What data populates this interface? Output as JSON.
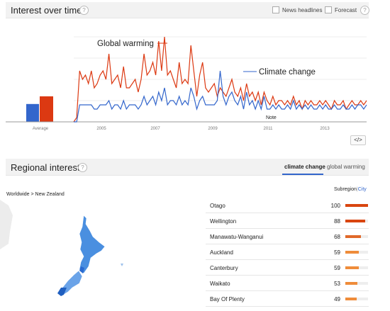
{
  "interest": {
    "title": "Interest over time",
    "news_headlines_label": "News headlines",
    "forecast_label": "Forecast",
    "average_label": "Average",
    "note_label": "Note",
    "annotation_global": "Global warming",
    "annotation_climate": "Climate change",
    "embed_label": "</>"
  },
  "colors": {
    "global_warming": "#dc3912",
    "climate_change": "#3366cc",
    "bar_dark": "#d9450f",
    "bar_light": "#ef8c3a"
  },
  "chart_data": {
    "type": "line",
    "x_ticks": [
      "2005",
      "2007",
      "2009",
      "2011",
      "2013"
    ],
    "series": [
      {
        "name": "Global warming",
        "average": 30,
        "values": [
          0,
          5,
          60,
          50,
          55,
          45,
          60,
          40,
          45,
          55,
          60,
          50,
          80,
          45,
          50,
          55,
          40,
          65,
          40,
          40,
          45,
          50,
          35,
          50,
          80,
          55,
          60,
          70,
          55,
          95,
          60,
          100,
          55,
          60,
          50,
          40,
          70,
          45,
          50,
          45,
          90,
          60,
          30,
          55,
          70,
          40,
          35,
          40,
          45,
          30,
          40,
          35,
          30,
          40,
          50,
          35,
          30,
          40,
          25,
          45,
          30,
          35,
          25,
          35,
          20,
          35,
          25,
          20,
          30,
          20,
          25,
          25,
          20,
          25,
          20,
          30,
          20,
          25,
          15,
          25,
          20,
          25,
          20,
          20,
          25,
          20,
          25,
          20,
          15,
          25,
          20,
          20,
          25,
          15,
          20,
          25,
          20,
          20,
          25,
          20,
          25
        ]
      },
      {
        "name": "Climate change",
        "average": 21,
        "values": [
          0,
          0,
          20,
          20,
          20,
          20,
          20,
          15,
          15,
          20,
          20,
          20,
          25,
          15,
          20,
          20,
          15,
          25,
          15,
          20,
          20,
          20,
          15,
          20,
          30,
          20,
          25,
          30,
          20,
          35,
          25,
          40,
          20,
          25,
          25,
          20,
          30,
          20,
          25,
          20,
          40,
          30,
          15,
          25,
          30,
          20,
          20,
          20,
          20,
          25,
          60,
          30,
          20,
          30,
          35,
          25,
          20,
          30,
          15,
          35,
          20,
          25,
          15,
          25,
          15,
          30,
          15,
          15,
          20,
          15,
          20,
          15,
          15,
          20,
          15,
          25,
          15,
          20,
          15,
          20,
          15,
          20,
          15,
          15,
          20,
          15,
          20,
          15,
          15,
          20,
          15,
          15,
          20,
          15,
          15,
          20,
          15,
          20,
          20,
          15,
          20
        ]
      }
    ],
    "ylim": [
      0,
      100
    ]
  },
  "regional": {
    "title": "Regional interest",
    "tab_climate": "climate change",
    "tab_global": "global warming",
    "subregion_label": "Subregion",
    "city_label": "City",
    "breadcrumb": "Worldwide > New Zealand",
    "rows": [
      {
        "name": "Otago",
        "value": 100,
        "color": "#d9450f"
      },
      {
        "name": "Wellington",
        "value": 88,
        "color": "#d9450f"
      },
      {
        "name": "Manawatu-Wanganui",
        "value": 68,
        "color": "#e0692a"
      },
      {
        "name": "Auckland",
        "value": 59,
        "color": "#ef8c3a"
      },
      {
        "name": "Canterbury",
        "value": 59,
        "color": "#ef8c3a"
      },
      {
        "name": "Waikato",
        "value": 53,
        "color": "#ef8c3a"
      },
      {
        "name": "Bay Of Plenty",
        "value": 49,
        "color": "#ef8c3a"
      }
    ]
  }
}
